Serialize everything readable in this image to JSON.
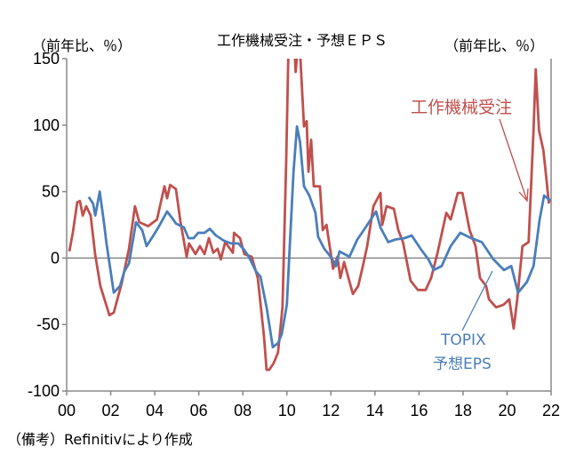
{
  "chart_data": {
    "type": "line",
    "title": "工作機械受注・予想ＥＰＳ",
    "ylabel_left": "（前年比、％）",
    "ylabel_right": "（前年比、％）",
    "xlim": [
      2000,
      2022
    ],
    "ylim": [
      -100,
      150
    ],
    "x_ticks": [
      "00",
      "02",
      "04",
      "06",
      "08",
      "10",
      "12",
      "14",
      "16",
      "18",
      "20",
      "22"
    ],
    "y_ticks": [
      "150",
      "100",
      "50",
      "0",
      "-50",
      "-100"
    ],
    "y_tick_values": [
      150,
      100,
      50,
      0,
      -50,
      -100
    ],
    "grid": false,
    "zero_line": true,
    "note": "（備考）Refinitivにより作成",
    "series": [
      {
        "name": "工作機械受注",
        "color": "#c0504d",
        "x": [
          2000.12,
          2000.28,
          2000.48,
          2000.6,
          2000.73,
          2000.89,
          2001.09,
          2001.29,
          2001.53,
          2001.94,
          2002.14,
          2002.5,
          2002.83,
          2003.1,
          2003.3,
          2003.7,
          2004.1,
          2004.44,
          2004.56,
          2004.7,
          2004.96,
          2005.17,
          2005.45,
          2005.56,
          2005.85,
          2006.05,
          2006.26,
          2006.46,
          2006.66,
          2006.86,
          2007.0,
          2007.2,
          2007.55,
          2007.6,
          2007.87,
          2008.07,
          2008.4,
          2008.68,
          2008.96,
          2009.08,
          2009.2,
          2009.4,
          2009.6,
          2009.8,
          2009.97,
          2010.1,
          2010.3,
          2010.4,
          2010.55,
          2010.78,
          2010.9,
          2010.98,
          2011.1,
          2011.22,
          2011.5,
          2011.63,
          2011.8,
          2012.1,
          2012.3,
          2012.43,
          2012.6,
          2013.0,
          2013.24,
          2013.45,
          2013.65,
          2013.93,
          2014.25,
          2014.33,
          2014.53,
          2014.86,
          2015.06,
          2015.27,
          2015.62,
          2015.95,
          2016.3,
          2016.55,
          2016.83,
          2017.24,
          2017.44,
          2017.76,
          2017.97,
          2018.3,
          2018.57,
          2018.77,
          2019.05,
          2019.18,
          2019.5,
          2019.85,
          2020.1,
          2020.3,
          2020.46,
          2020.7,
          2020.98,
          2021.2,
          2021.3,
          2021.45,
          2021.65,
          2021.78,
          2021.9
        ],
        "values": [
          5,
          19,
          42,
          43,
          32,
          39,
          32,
          3,
          -21,
          -43,
          -41,
          -19,
          7,
          39,
          27,
          24,
          29,
          54,
          45,
          55,
          52,
          27,
          1,
          11,
          3,
          9,
          3,
          15,
          4,
          7,
          -1,
          12,
          4,
          19,
          15,
          3,
          1,
          -15,
          -59,
          -84,
          -84,
          -79,
          -71,
          -37,
          74,
          180,
          175,
          140,
          170,
          99,
          103,
          65,
          89,
          54,
          54,
          21,
          25,
          -8,
          1,
          -15,
          -3,
          -27,
          -21,
          -6,
          9,
          39,
          49,
          25,
          39,
          37,
          21,
          12,
          -17,
          -24,
          -24,
          -15,
          3,
          34,
          29,
          49,
          49,
          21,
          9,
          -15,
          -21,
          -31,
          -37,
          -35,
          -31,
          -53,
          -31,
          9,
          12,
          96,
          142,
          96,
          81,
          61,
          41
        ]
      },
      {
        "name": "TOPIX 予想EPS",
        "color": "#4a7ebb",
        "x": [
          2001.0,
          2001.2,
          2001.3,
          2001.5,
          2001.7,
          2001.8,
          2002.14,
          2002.42,
          2002.62,
          2002.83,
          2003.15,
          2003.43,
          2003.63,
          2003.9,
          2004.16,
          2004.56,
          2004.84,
          2004.96,
          2005.33,
          2005.53,
          2005.77,
          2005.97,
          2006.26,
          2006.5,
          2006.78,
          2007.15,
          2007.47,
          2007.8,
          2008.07,
          2008.27,
          2008.6,
          2008.8,
          2009.08,
          2009.36,
          2009.6,
          2009.77,
          2010.0,
          2010.3,
          2010.46,
          2010.6,
          2010.78,
          2011.02,
          2011.3,
          2011.42,
          2011.7,
          2011.99,
          2012.23,
          2012.39,
          2012.84,
          2013.2,
          2013.53,
          2014.05,
          2014.25,
          2014.6,
          2014.93,
          2015.34,
          2015.67,
          2016.07,
          2016.43,
          2016.67,
          2017.03,
          2017.44,
          2017.88,
          2018.37,
          2018.85,
          2019.38,
          2019.86,
          2020.19,
          2020.5,
          2020.9,
          2021.2,
          2021.48,
          2021.68,
          2022.0
        ],
        "values": [
          46,
          41,
          32,
          50,
          26,
          12,
          -26,
          -21,
          -10,
          -4,
          27,
          21,
          9,
          16,
          23,
          35,
          29,
          26,
          23,
          15,
          15,
          19,
          19,
          22,
          17,
          13,
          11,
          11,
          6,
          1,
          -10,
          -14,
          -37,
          -67,
          -64,
          -57,
          -35,
          65,
          99,
          87,
          54,
          47,
          34,
          16,
          7,
          1,
          -6,
          5,
          1,
          14,
          22,
          35,
          23,
          12,
          14,
          15,
          17,
          7,
          -1,
          -9,
          -6,
          9,
          19,
          15,
          12,
          -1,
          -9,
          -6,
          -26,
          -18,
          -6,
          29,
          47,
          43
        ]
      }
    ],
    "annotations": [
      {
        "text": "工作機械受注",
        "color": "#c0504d"
      },
      {
        "text_line1": "TOPIX",
        "text_line2": "予想EPS",
        "color": "#4a7ebb"
      }
    ]
  }
}
